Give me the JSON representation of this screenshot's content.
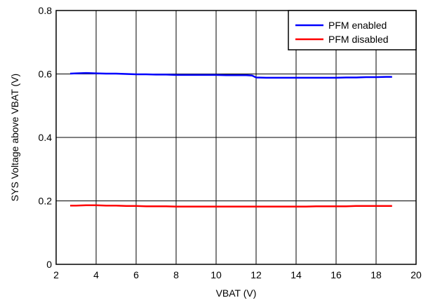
{
  "chart_data": {
    "type": "line",
    "title": "",
    "xlabel": "VBAT (V)",
    "ylabel": "SYS Voltage above VBAT (V)",
    "xlim": [
      2,
      20
    ],
    "ylim": [
      0,
      0.8
    ],
    "x_ticks": [
      "2",
      "4",
      "6",
      "8",
      "10",
      "12",
      "14",
      "16",
      "18",
      "20"
    ],
    "y_ticks": [
      "0",
      "0.2",
      "0.4",
      "0.6",
      "0.8"
    ],
    "grid": true,
    "legend_position": "top-right",
    "series": [
      {
        "name": "PFM enabled",
        "color": "#0000ff",
        "x": [
          2.7,
          3.0,
          3.5,
          4.0,
          4.5,
          5.0,
          5.5,
          6.0,
          6.5,
          7.0,
          7.5,
          8.0,
          8.5,
          9.0,
          9.5,
          10.0,
          10.5,
          11.0,
          11.5,
          11.8,
          12.0,
          12.5,
          13.0,
          13.5,
          14.0,
          14.5,
          15.0,
          15.5,
          16.0,
          16.5,
          17.0,
          17.5,
          18.0,
          18.5,
          18.8
        ],
        "y": [
          0.601,
          0.602,
          0.603,
          0.602,
          0.601,
          0.601,
          0.6,
          0.599,
          0.599,
          0.598,
          0.598,
          0.597,
          0.597,
          0.597,
          0.597,
          0.597,
          0.596,
          0.596,
          0.596,
          0.595,
          0.589,
          0.588,
          0.588,
          0.588,
          0.588,
          0.588,
          0.588,
          0.588,
          0.588,
          0.589,
          0.589,
          0.59,
          0.59,
          0.591,
          0.591
        ]
      },
      {
        "name": "PFM disabled",
        "color": "#ff0000",
        "x": [
          2.7,
          3.0,
          3.5,
          4.0,
          4.5,
          5.0,
          5.5,
          6.0,
          6.5,
          7.0,
          7.5,
          8.0,
          8.5,
          9.0,
          9.5,
          10.0,
          10.5,
          11.0,
          11.5,
          12.0,
          12.5,
          13.0,
          13.5,
          14.0,
          14.5,
          15.0,
          15.5,
          16.0,
          16.5,
          17.0,
          17.5,
          18.0,
          18.5,
          18.8
        ],
        "y": [
          0.185,
          0.185,
          0.186,
          0.186,
          0.185,
          0.185,
          0.184,
          0.184,
          0.183,
          0.183,
          0.183,
          0.182,
          0.182,
          0.182,
          0.182,
          0.182,
          0.182,
          0.182,
          0.182,
          0.182,
          0.182,
          0.182,
          0.182,
          0.182,
          0.182,
          0.183,
          0.183,
          0.183,
          0.183,
          0.184,
          0.184,
          0.184,
          0.184,
          0.184
        ]
      }
    ]
  }
}
